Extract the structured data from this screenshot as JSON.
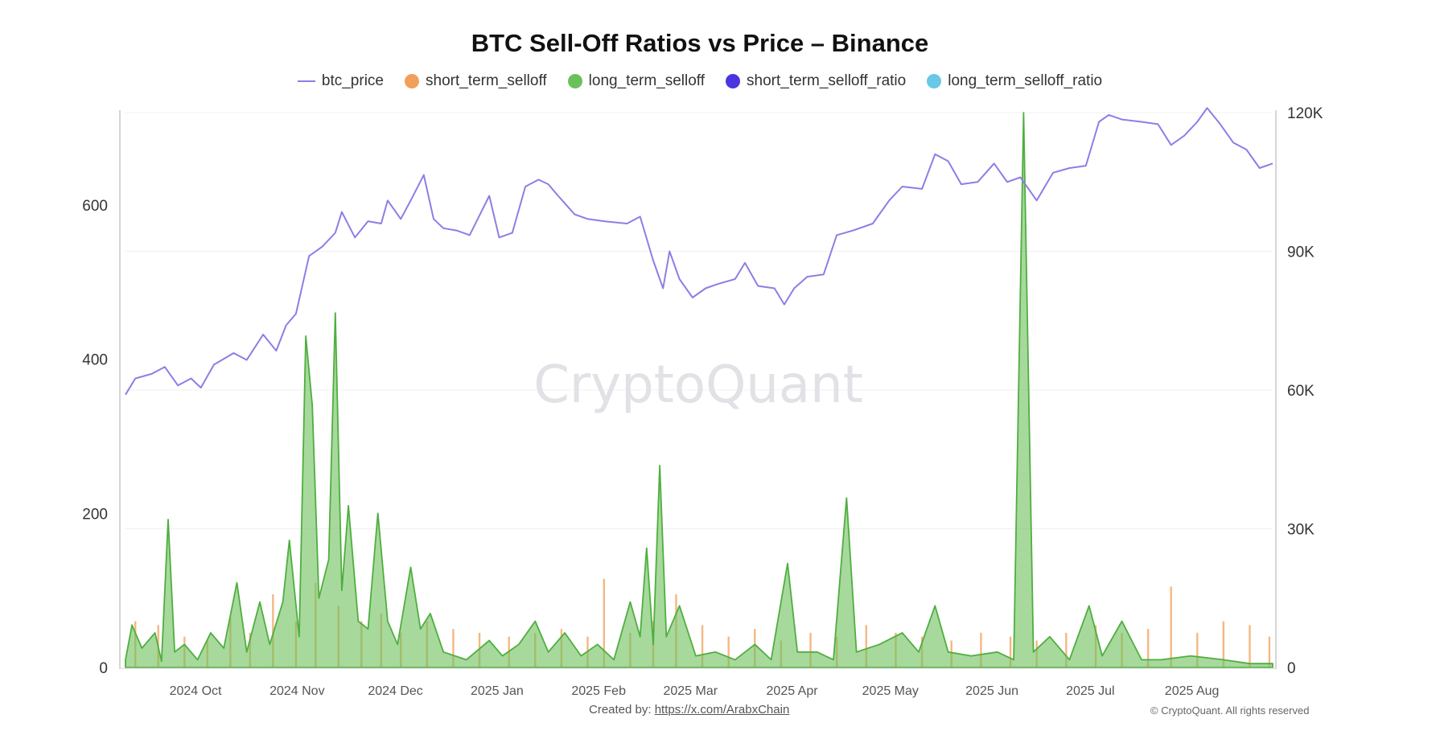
{
  "chart_data": {
    "type": "line",
    "title": "BTC Sell-Off Ratios vs Price – Binance",
    "legend": [
      {
        "name": "btc_price",
        "color": "#8c7ee6",
        "marker": "line"
      },
      {
        "name": "short_term_selloff",
        "color": "#f0a05a",
        "marker": "dot"
      },
      {
        "name": "long_term_selloff",
        "color": "#6cc05c",
        "marker": "dot"
      },
      {
        "name": "short_term_selloff_ratio",
        "color": "#4b35e0",
        "marker": "dot"
      },
      {
        "name": "long_term_selloff_ratio",
        "color": "#68c8e6",
        "marker": "dot"
      }
    ],
    "legend_position": "top",
    "grid": true,
    "x_range": [
      "2024-09-17",
      "2025-09-02"
    ],
    "x_ticks": [
      {
        "label": "2024 Oct",
        "date": "2024-10-01"
      },
      {
        "label": "2024 Nov",
        "date": "2024-11-01"
      },
      {
        "label": "2024 Dec",
        "date": "2024-12-01"
      },
      {
        "label": "2025 Jan",
        "date": "2025-01-01"
      },
      {
        "label": "2025 Feb",
        "date": "2025-02-01"
      },
      {
        "label": "2025 Mar",
        "date": "2025-03-01"
      },
      {
        "label": "2025 Apr",
        "date": "2025-04-01"
      },
      {
        "label": "2025 May",
        "date": "2025-05-01"
      },
      {
        "label": "2025 Jun",
        "date": "2025-06-01"
      },
      {
        "label": "2025 Jul",
        "date": "2025-07-01"
      },
      {
        "label": "2025 Aug",
        "date": "2025-08-01"
      }
    ],
    "y_left": {
      "ylim": [
        0,
        720
      ],
      "ticks": [
        {
          "value": 0,
          "label": "0"
        },
        {
          "value": 200,
          "label": "200"
        },
        {
          "value": 400,
          "label": "400"
        },
        {
          "value": 600,
          "label": "600"
        }
      ]
    },
    "y_right": {
      "ylim": [
        0,
        120000
      ],
      "ticks": [
        {
          "value": 0,
          "label": "0"
        },
        {
          "value": 30000,
          "label": "30K"
        },
        {
          "value": 60000,
          "label": "60K"
        },
        {
          "value": 90000,
          "label": "90K"
        },
        {
          "value": 120000,
          "label": "120K"
        }
      ]
    },
    "series": [
      {
        "name": "btc_price",
        "axis": "right",
        "type": "line",
        "color": "#8c7ee6",
        "points": [
          [
            "2024-09-17",
            59000
          ],
          [
            "2024-09-20",
            62500
          ],
          [
            "2024-09-25",
            63500
          ],
          [
            "2024-09-29",
            65000
          ],
          [
            "2024-10-03",
            61000
          ],
          [
            "2024-10-07",
            62500
          ],
          [
            "2024-10-10",
            60500
          ],
          [
            "2024-10-14",
            65500
          ],
          [
            "2024-10-20",
            68000
          ],
          [
            "2024-10-24",
            66500
          ],
          [
            "2024-10-29",
            72000
          ],
          [
            "2024-11-02",
            68500
          ],
          [
            "2024-11-05",
            74000
          ],
          [
            "2024-11-08",
            76500
          ],
          [
            "2024-11-12",
            89000
          ],
          [
            "2024-11-16",
            91000
          ],
          [
            "2024-11-20",
            94000
          ],
          [
            "2024-11-22",
            98500
          ],
          [
            "2024-11-26",
            93000
          ],
          [
            "2024-11-30",
            96500
          ],
          [
            "2024-12-04",
            96000
          ],
          [
            "2024-12-06",
            101000
          ],
          [
            "2024-12-10",
            97000
          ],
          [
            "2024-12-13",
            101000
          ],
          [
            "2024-12-17",
            106500
          ],
          [
            "2024-12-20",
            97000
          ],
          [
            "2024-12-23",
            95000
          ],
          [
            "2024-12-27",
            94500
          ],
          [
            "2024-12-31",
            93500
          ],
          [
            "2025-01-06",
            102000
          ],
          [
            "2025-01-09",
            93000
          ],
          [
            "2025-01-13",
            94000
          ],
          [
            "2025-01-17",
            104000
          ],
          [
            "2025-01-21",
            105500
          ],
          [
            "2025-01-24",
            104500
          ],
          [
            "2025-01-27",
            102000
          ],
          [
            "2025-02-01",
            98000
          ],
          [
            "2025-02-05",
            97000
          ],
          [
            "2025-02-10",
            96500
          ],
          [
            "2025-02-17",
            96000
          ],
          [
            "2025-02-21",
            97500
          ],
          [
            "2025-02-25",
            88000
          ],
          [
            "2025-02-28",
            82000
          ],
          [
            "2025-03-02",
            90000
          ],
          [
            "2025-03-05",
            84000
          ],
          [
            "2025-03-09",
            80000
          ],
          [
            "2025-03-13",
            82000
          ],
          [
            "2025-03-17",
            83000
          ],
          [
            "2025-03-22",
            84000
          ],
          [
            "2025-03-25",
            87500
          ],
          [
            "2025-03-29",
            82500
          ],
          [
            "2025-04-03",
            82000
          ],
          [
            "2025-04-06",
            78500
          ],
          [
            "2025-04-09",
            82000
          ],
          [
            "2025-04-13",
            84500
          ],
          [
            "2025-04-18",
            85000
          ],
          [
            "2025-04-22",
            93500
          ],
          [
            "2025-04-27",
            94500
          ],
          [
            "2025-05-03",
            96000
          ],
          [
            "2025-05-08",
            101000
          ],
          [
            "2025-05-12",
            104000
          ],
          [
            "2025-05-18",
            103500
          ],
          [
            "2025-05-22",
            111000
          ],
          [
            "2025-05-26",
            109500
          ],
          [
            "2025-05-30",
            104500
          ],
          [
            "2025-06-04",
            105000
          ],
          [
            "2025-06-09",
            109000
          ],
          [
            "2025-06-13",
            105000
          ],
          [
            "2025-06-17",
            106000
          ],
          [
            "2025-06-22",
            101000
          ],
          [
            "2025-06-27",
            107000
          ],
          [
            "2025-07-02",
            108000
          ],
          [
            "2025-07-07",
            108500
          ],
          [
            "2025-07-11",
            118000
          ],
          [
            "2025-07-14",
            119500
          ],
          [
            "2025-07-18",
            118500
          ],
          [
            "2025-07-24",
            118000
          ],
          [
            "2025-07-29",
            117500
          ],
          [
            "2025-08-02",
            113000
          ],
          [
            "2025-08-06",
            115000
          ],
          [
            "2025-08-10",
            118000
          ],
          [
            "2025-08-13",
            121000
          ],
          [
            "2025-08-17",
            117500
          ],
          [
            "2025-08-21",
            113500
          ],
          [
            "2025-08-25",
            112000
          ],
          [
            "2025-08-29",
            108000
          ],
          [
            "2025-09-02",
            109000
          ]
        ]
      },
      {
        "name": "long_term_selloff",
        "axis": "left",
        "type": "area",
        "color": "#6cc05c",
        "points": [
          [
            "2024-09-17",
            10
          ],
          [
            "2024-09-19",
            55
          ],
          [
            "2024-09-22",
            25
          ],
          [
            "2024-09-26",
            45
          ],
          [
            "2024-09-28",
            8
          ],
          [
            "2024-09-30",
            192
          ],
          [
            "2024-10-02",
            20
          ],
          [
            "2024-10-05",
            30
          ],
          [
            "2024-10-09",
            10
          ],
          [
            "2024-10-13",
            45
          ],
          [
            "2024-10-17",
            25
          ],
          [
            "2024-10-21",
            110
          ],
          [
            "2024-10-24",
            20
          ],
          [
            "2024-10-28",
            85
          ],
          [
            "2024-10-31",
            30
          ],
          [
            "2024-11-04",
            85
          ],
          [
            "2024-11-06",
            165
          ],
          [
            "2024-11-09",
            40
          ],
          [
            "2024-11-11",
            430
          ],
          [
            "2024-11-13",
            340
          ],
          [
            "2024-11-15",
            90
          ],
          [
            "2024-11-18",
            140
          ],
          [
            "2024-11-20",
            460
          ],
          [
            "2024-11-22",
            100
          ],
          [
            "2024-11-24",
            210
          ],
          [
            "2024-11-27",
            60
          ],
          [
            "2024-11-30",
            50
          ],
          [
            "2024-12-03",
            200
          ],
          [
            "2024-12-06",
            60
          ],
          [
            "2024-12-09",
            30
          ],
          [
            "2024-12-13",
            130
          ],
          [
            "2024-12-16",
            50
          ],
          [
            "2024-12-19",
            70
          ],
          [
            "2024-12-23",
            20
          ],
          [
            "2024-12-30",
            10
          ],
          [
            "2025-01-06",
            35
          ],
          [
            "2025-01-10",
            15
          ],
          [
            "2025-01-15",
            30
          ],
          [
            "2025-01-20",
            60
          ],
          [
            "2025-01-24",
            20
          ],
          [
            "2025-01-29",
            45
          ],
          [
            "2025-02-03",
            15
          ],
          [
            "2025-02-08",
            30
          ],
          [
            "2025-02-13",
            10
          ],
          [
            "2025-02-18",
            85
          ],
          [
            "2025-02-21",
            40
          ],
          [
            "2025-02-23",
            155
          ],
          [
            "2025-02-25",
            30
          ],
          [
            "2025-02-27",
            262
          ],
          [
            "2025-03-01",
            40
          ],
          [
            "2025-03-05",
            80
          ],
          [
            "2025-03-10",
            15
          ],
          [
            "2025-03-16",
            20
          ],
          [
            "2025-03-22",
            10
          ],
          [
            "2025-03-28",
            30
          ],
          [
            "2025-04-02",
            10
          ],
          [
            "2025-04-07",
            135
          ],
          [
            "2025-04-10",
            20
          ],
          [
            "2025-04-16",
            20
          ],
          [
            "2025-04-21",
            10
          ],
          [
            "2025-04-25",
            220
          ],
          [
            "2025-04-28",
            20
          ],
          [
            "2025-05-05",
            30
          ],
          [
            "2025-05-12",
            45
          ],
          [
            "2025-05-17",
            20
          ],
          [
            "2025-05-22",
            80
          ],
          [
            "2025-05-26",
            20
          ],
          [
            "2025-06-02",
            15
          ],
          [
            "2025-06-10",
            20
          ],
          [
            "2025-06-15",
            10
          ],
          [
            "2025-06-18",
            720
          ],
          [
            "2025-06-21",
            20
          ],
          [
            "2025-06-26",
            40
          ],
          [
            "2025-07-02",
            10
          ],
          [
            "2025-07-08",
            80
          ],
          [
            "2025-07-12",
            15
          ],
          [
            "2025-07-18",
            60
          ],
          [
            "2025-07-24",
            10
          ],
          [
            "2025-07-30",
            10
          ],
          [
            "2025-08-08",
            15
          ],
          [
            "2025-08-18",
            10
          ],
          [
            "2025-08-26",
            5
          ],
          [
            "2025-09-02",
            5
          ]
        ]
      },
      {
        "name": "short_term_selloff",
        "axis": "left",
        "type": "bar",
        "color": "#f0a05a",
        "points": [
          [
            "2024-09-20",
            60
          ],
          [
            "2024-09-27",
            55
          ],
          [
            "2024-10-05",
            40
          ],
          [
            "2024-10-12",
            35
          ],
          [
            "2024-10-19",
            65
          ],
          [
            "2024-10-25",
            45
          ],
          [
            "2024-11-01",
            95
          ],
          [
            "2024-11-08",
            60
          ],
          [
            "2024-11-14",
            110
          ],
          [
            "2024-11-21",
            80
          ],
          [
            "2024-11-28",
            60
          ],
          [
            "2024-12-04",
            70
          ],
          [
            "2024-12-10",
            45
          ],
          [
            "2024-12-18",
            60
          ],
          [
            "2024-12-26",
            50
          ],
          [
            "2025-01-03",
            45
          ],
          [
            "2025-01-12",
            40
          ],
          [
            "2025-01-20",
            45
          ],
          [
            "2025-01-28",
            50
          ],
          [
            "2025-02-05",
            40
          ],
          [
            "2025-02-10",
            115
          ],
          [
            "2025-02-18",
            45
          ],
          [
            "2025-02-25",
            60
          ],
          [
            "2025-03-04",
            95
          ],
          [
            "2025-03-12",
            55
          ],
          [
            "2025-03-20",
            40
          ],
          [
            "2025-03-28",
            50
          ],
          [
            "2025-04-05",
            35
          ],
          [
            "2025-04-14",
            45
          ],
          [
            "2025-04-22",
            40
          ],
          [
            "2025-05-01",
            55
          ],
          [
            "2025-05-10",
            45
          ],
          [
            "2025-05-18",
            40
          ],
          [
            "2025-05-27",
            35
          ],
          [
            "2025-06-05",
            45
          ],
          [
            "2025-06-14",
            40
          ],
          [
            "2025-06-22",
            35
          ],
          [
            "2025-07-01",
            45
          ],
          [
            "2025-07-10",
            55
          ],
          [
            "2025-07-18",
            45
          ],
          [
            "2025-07-26",
            50
          ],
          [
            "2025-08-02",
            105
          ],
          [
            "2025-08-10",
            45
          ],
          [
            "2025-08-18",
            60
          ],
          [
            "2025-08-26",
            55
          ],
          [
            "2025-09-01",
            40
          ]
        ]
      }
    ],
    "watermark": "CryptoQuant",
    "footer": {
      "created_by_label": "Created by:",
      "created_by_link": "https://x.com/ArabxChain",
      "copyright": "© CryptoQuant. All rights reserved"
    }
  }
}
